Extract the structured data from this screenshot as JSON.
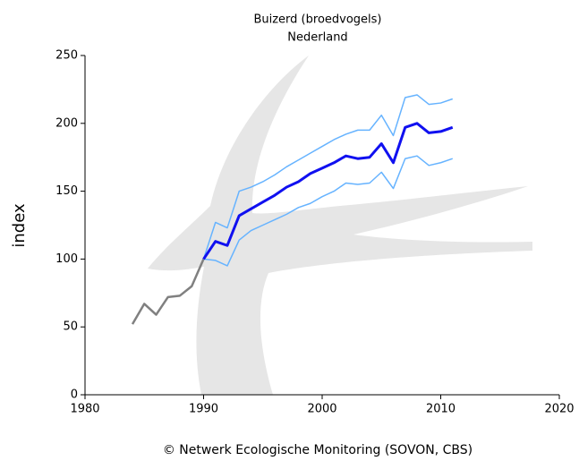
{
  "chart_data": {
    "type": "line",
    "title": "Buizerd (broedvogels)",
    "subtitle": "Nederland",
    "y_label": "index",
    "footer": "© Netwerk Ecologische Monitoring (SOVON, CBS)",
    "xlim": [
      1980,
      2020
    ],
    "xticks": [
      1980,
      1990,
      2000,
      2010,
      2020
    ],
    "ylim": [
      0,
      250
    ],
    "yticks": [
      0,
      50,
      100,
      150,
      200,
      250
    ],
    "series": [
      {
        "color": "#808080",
        "width": 2.5,
        "x": [
          1984,
          1985,
          1986,
          1987,
          1988,
          1989,
          1990
        ],
        "values": [
          52,
          67,
          59,
          72,
          73,
          80,
          100
        ]
      },
      {
        "color": "#66b3ff",
        "width": 1.5,
        "x": [
          1990,
          1991,
          1992,
          1993,
          1994,
          1995,
          1996,
          1997,
          1998,
          1999,
          2000,
          2001,
          2002,
          2003,
          2004,
          2005,
          2006,
          2007,
          2008,
          2009,
          2010,
          2011
        ],
        "values": [
          100,
          127,
          123,
          150,
          153,
          157,
          162,
          168,
          173,
          178,
          183,
          188,
          192,
          195,
          195,
          206,
          191,
          219,
          221,
          214,
          215,
          218
        ]
      },
      {
        "color": "#66b3ff",
        "width": 1.5,
        "x": [
          1990,
          1991,
          1992,
          1993,
          1994,
          1995,
          1996,
          1997,
          1998,
          1999,
          2000,
          2001,
          2002,
          2003,
          2004,
          2005,
          2006,
          2007,
          2008,
          2009,
          2010,
          2011
        ],
        "values": [
          100,
          99,
          95,
          114,
          121,
          125,
          129,
          133,
          138,
          141,
          146,
          150,
          156,
          155,
          156,
          164,
          152,
          174,
          176,
          169,
          171,
          174
        ]
      },
      {
        "color": "#1010f0",
        "width": 3,
        "x": [
          1990,
          1991,
          1992,
          1993,
          1994,
          1995,
          1996,
          1997,
          1998,
          1999,
          2000,
          2001,
          2002,
          2003,
          2004,
          2005,
          2006,
          2007,
          2008,
          2009,
          2010,
          2011
        ],
        "values": [
          100,
          113,
          110,
          132,
          137,
          142,
          147,
          153,
          157,
          163,
          167,
          171,
          176,
          174,
          175,
          185,
          171,
          197,
          200,
          193,
          194,
          197
        ]
      }
    ]
  }
}
